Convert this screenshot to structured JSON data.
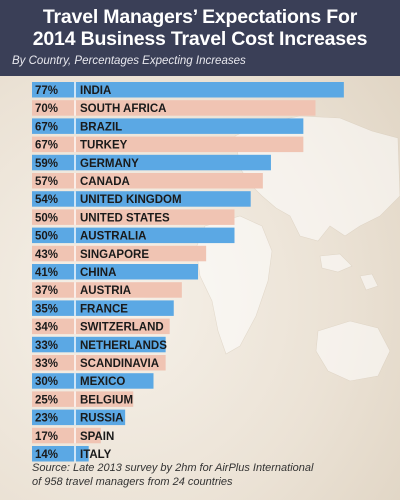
{
  "header": {
    "title_line1": "Travel Managers’ Expectations For",
    "title_line2": "2014 Business Travel Cost Increases",
    "subtitle": "By Country, Percentages Expecting Increases"
  },
  "footer": {
    "line1": "Source: Late 2013 survey by 2hm for AirPlus International",
    "line2": "of 958 travel managers from 24 countries"
  },
  "colors": {
    "header_bg": "#3a3f57",
    "bar_blue": "#5ba8e4",
    "bar_peach": "#f0c4b3"
  },
  "chart_data": {
    "type": "bar",
    "orientation": "horizontal",
    "title": "Travel Managers’ Expectations For 2014 Business Travel Cost Increases",
    "subtitle": "By Country, Percentages Expecting Increases",
    "unit": "%",
    "xlim": [
      0,
      100
    ],
    "grid": false,
    "categories": [
      "INDIA",
      "SOUTH AFRICA",
      "BRAZIL",
      "TURKEY",
      "GERMANY",
      "CANADA",
      "UNITED KINGDOM",
      "UNITED STATES",
      "AUSTRALIA",
      "SINGAPORE",
      "CHINA",
      "AUSTRIA",
      "FRANCE",
      "SWITZERLAND",
      "NETHERLANDS",
      "SCANDINAVIA",
      "MEXICO",
      "BELGIUM",
      "RUSSIA",
      "SPAIN",
      "ITALY"
    ],
    "values": [
      77,
      70,
      67,
      67,
      59,
      57,
      54,
      50,
      50,
      43,
      41,
      37,
      35,
      34,
      33,
      33,
      30,
      25,
      23,
      17,
      14
    ],
    "value_labels": [
      "77%",
      "70%",
      "67%",
      "67%",
      "59%",
      "57%",
      "54%",
      "50%",
      "50%",
      "43%",
      "41%",
      "37%",
      "35%",
      "34%",
      "33%",
      "33%",
      "30%",
      "25%",
      "23%",
      "17%",
      "14%"
    ]
  }
}
